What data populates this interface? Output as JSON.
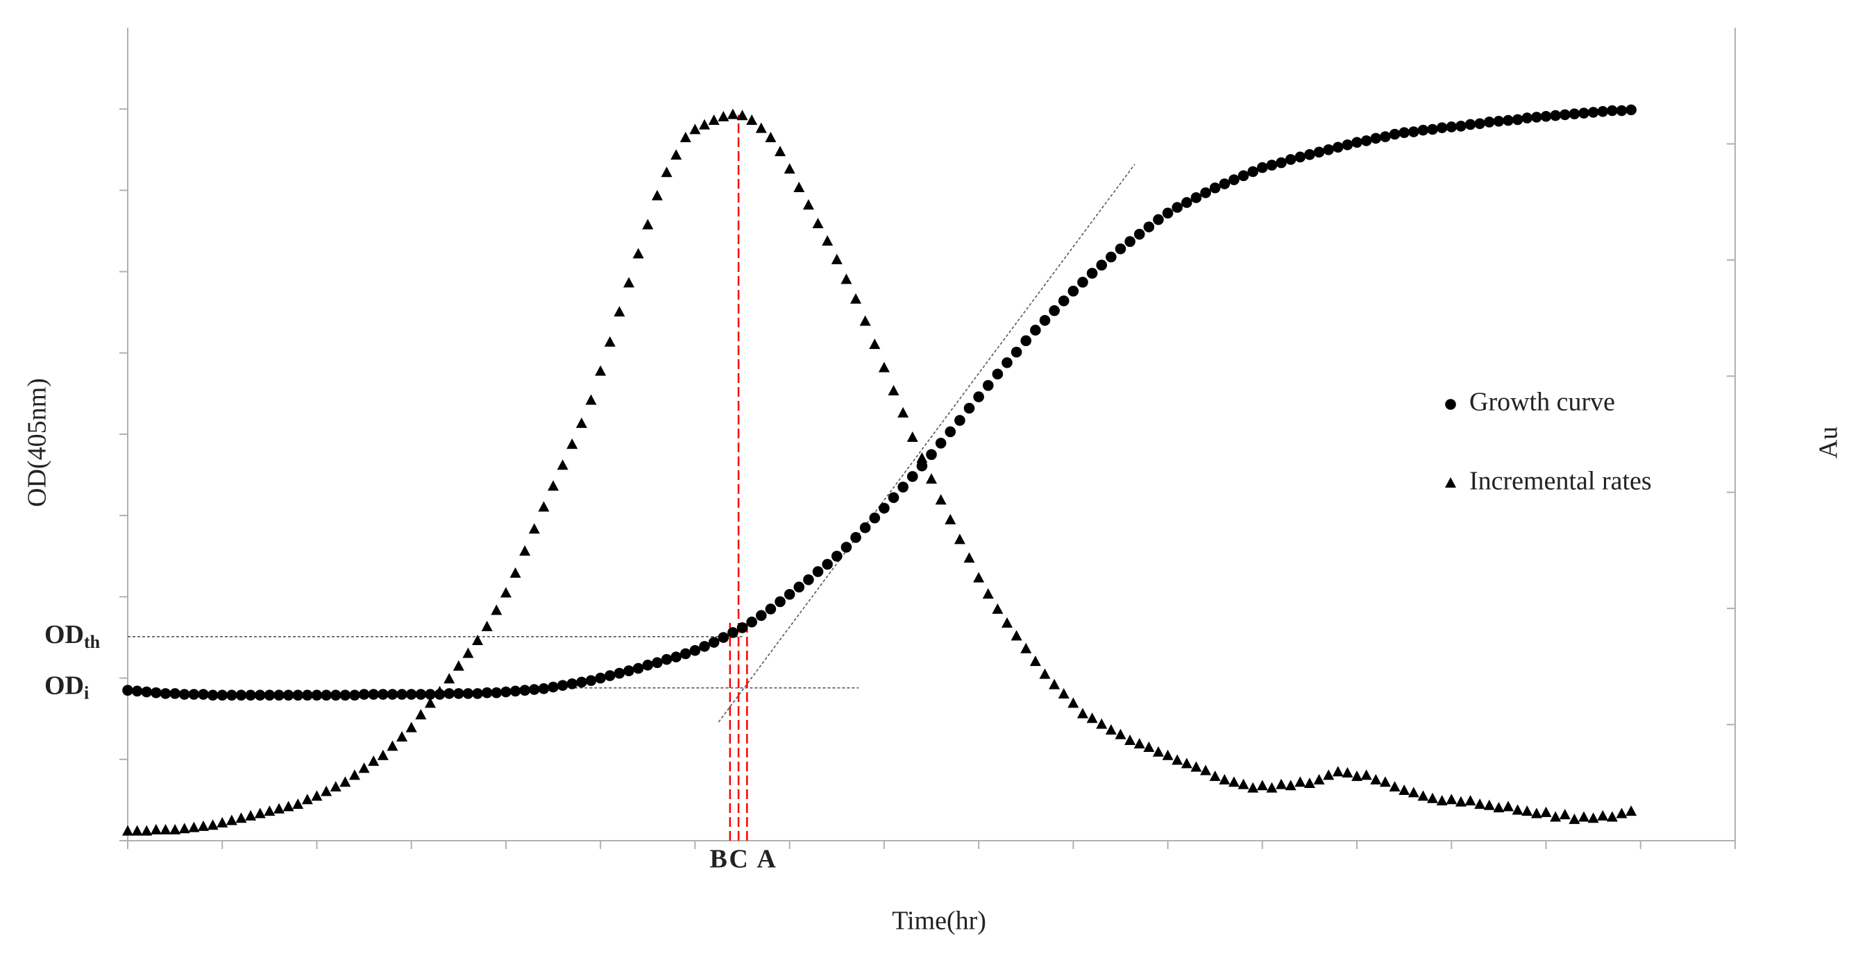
{
  "chart_data": {
    "type": "scatter",
    "xlabel": "Time(hr)",
    "ylabel": "OD(405nm)",
    "y2label": "Au",
    "xlim": [
      0,
      17
    ],
    "xticks": [
      0,
      1,
      2,
      3,
      4,
      5,
      6,
      7,
      8,
      9,
      10,
      11,
      12,
      13,
      14,
      15,
      16,
      17
    ],
    "ylim": [
      0,
      10
    ],
    "yticks": [
      0,
      1,
      2,
      3,
      4,
      5,
      6,
      7,
      8,
      9
    ],
    "y2lim": [
      0,
      7
    ],
    "y2ticks": [
      0,
      1,
      2,
      3,
      4,
      5,
      6
    ],
    "legend": "right",
    "x": [
      0.0,
      0.1,
      0.2,
      0.3,
      0.4,
      0.5,
      0.6,
      0.7,
      0.8,
      0.9,
      1.0,
      1.1,
      1.2,
      1.3,
      1.4,
      1.5,
      1.6,
      1.7,
      1.8,
      1.9,
      2.0,
      2.1,
      2.2,
      2.3,
      2.4,
      2.5,
      2.6,
      2.7,
      2.8,
      2.9,
      3.0,
      3.1,
      3.2,
      3.3,
      3.4,
      3.5,
      3.6,
      3.7,
      3.8,
      3.9,
      4.0,
      4.1,
      4.2,
      4.3,
      4.4,
      4.5,
      4.6,
      4.7,
      4.8,
      4.9,
      5.0,
      5.1,
      5.2,
      5.3,
      5.4,
      5.5,
      5.6,
      5.7,
      5.8,
      5.9,
      6.0,
      6.1,
      6.2,
      6.3,
      6.4,
      6.5,
      6.6,
      6.7,
      6.8,
      6.9,
      7.0,
      7.1,
      7.2,
      7.3,
      7.4,
      7.5,
      7.6,
      7.7,
      7.8,
      7.9,
      8.0,
      8.1,
      8.2,
      8.3,
      8.4,
      8.5,
      8.6,
      8.7,
      8.8,
      8.9,
      9.0,
      9.1,
      9.2,
      9.3,
      9.4,
      9.5,
      9.6,
      9.7,
      9.8,
      9.9,
      10.0,
      10.1,
      10.2,
      10.3,
      10.4,
      10.5,
      10.6,
      10.7,
      10.8,
      10.9,
      11.0,
      11.1,
      11.2,
      11.3,
      11.4,
      11.5,
      11.6,
      11.7,
      11.8,
      11.9,
      12.0,
      12.1,
      12.2,
      12.3,
      12.4,
      12.5,
      12.6,
      12.7,
      12.8,
      12.9,
      13.0,
      13.1,
      13.2,
      13.3,
      13.4,
      13.5,
      13.6,
      13.7,
      13.8,
      13.9,
      14.0,
      14.1,
      14.2,
      14.3,
      14.4,
      14.5,
      14.6,
      14.7,
      14.8,
      14.9,
      15.0,
      15.1,
      15.2,
      15.3,
      15.4,
      15.5,
      15.6,
      15.7,
      15.8,
      15.9
    ],
    "series": [
      {
        "name": "Growth curve",
        "marker": "circle",
        "color": "#000000",
        "axis": "y",
        "values": [
          1.85,
          1.84,
          1.83,
          1.82,
          1.81,
          1.81,
          1.8,
          1.8,
          1.8,
          1.79,
          1.79,
          1.79,
          1.79,
          1.79,
          1.79,
          1.79,
          1.79,
          1.79,
          1.79,
          1.79,
          1.79,
          1.79,
          1.79,
          1.79,
          1.79,
          1.8,
          1.8,
          1.8,
          1.8,
          1.8,
          1.8,
          1.8,
          1.8,
          1.8,
          1.81,
          1.81,
          1.81,
          1.81,
          1.82,
          1.82,
          1.83,
          1.84,
          1.85,
          1.86,
          1.87,
          1.89,
          1.91,
          1.93,
          1.95,
          1.97,
          2.0,
          2.03,
          2.06,
          2.09,
          2.12,
          2.16,
          2.19,
          2.23,
          2.26,
          2.3,
          2.34,
          2.39,
          2.44,
          2.5,
          2.56,
          2.62,
          2.69,
          2.77,
          2.85,
          2.94,
          3.03,
          3.12,
          3.21,
          3.31,
          3.4,
          3.5,
          3.61,
          3.73,
          3.85,
          3.97,
          4.09,
          4.22,
          4.35,
          4.48,
          4.61,
          4.75,
          4.89,
          5.03,
          5.17,
          5.32,
          5.46,
          5.6,
          5.74,
          5.88,
          6.01,
          6.15,
          6.28,
          6.4,
          6.52,
          6.64,
          6.76,
          6.87,
          6.98,
          7.08,
          7.18,
          7.28,
          7.37,
          7.46,
          7.55,
          7.64,
          7.72,
          7.79,
          7.85,
          7.91,
          7.97,
          8.03,
          8.08,
          8.13,
          8.18,
          8.23,
          8.28,
          8.31,
          8.34,
          8.38,
          8.41,
          8.44,
          8.47,
          8.5,
          8.53,
          8.56,
          8.59,
          8.61,
          8.64,
          8.66,
          8.69,
          8.71,
          8.72,
          8.74,
          8.75,
          8.77,
          8.78,
          8.79,
          8.81,
          8.82,
          8.84,
          8.85,
          8.86,
          8.87,
          8.89,
          8.9,
          8.91,
          8.92,
          8.93,
          8.94,
          8.95,
          8.96,
          8.97,
          8.98,
          8.98,
          8.99
        ]
      },
      {
        "name": "Incremental rates",
        "marker": "triangle",
        "color": "#000000",
        "axis": "y2",
        "values": [
          0.08,
          0.08,
          0.08,
          0.09,
          0.09,
          0.09,
          0.1,
          0.11,
          0.12,
          0.13,
          0.15,
          0.17,
          0.19,
          0.21,
          0.23,
          0.25,
          0.27,
          0.29,
          0.31,
          0.35,
          0.38,
          0.42,
          0.46,
          0.5,
          0.56,
          0.62,
          0.68,
          0.73,
          0.81,
          0.89,
          0.97,
          1.08,
          1.18,
          1.28,
          1.39,
          1.5,
          1.61,
          1.72,
          1.84,
          1.98,
          2.13,
          2.3,
          2.49,
          2.68,
          2.87,
          3.05,
          3.23,
          3.41,
          3.59,
          3.79,
          4.04,
          4.29,
          4.55,
          4.8,
          5.05,
          5.3,
          5.55,
          5.75,
          5.9,
          6.05,
          6.12,
          6.16,
          6.2,
          6.23,
          6.25,
          6.24,
          6.2,
          6.13,
          6.05,
          5.93,
          5.78,
          5.62,
          5.47,
          5.31,
          5.16,
          5.0,
          4.83,
          4.66,
          4.47,
          4.27,
          4.07,
          3.87,
          3.68,
          3.47,
          3.29,
          3.11,
          2.93,
          2.76,
          2.59,
          2.43,
          2.26,
          2.12,
          1.99,
          1.87,
          1.76,
          1.65,
          1.54,
          1.43,
          1.34,
          1.26,
          1.18,
          1.09,
          1.05,
          1.0,
          0.95,
          0.91,
          0.86,
          0.83,
          0.8,
          0.76,
          0.73,
          0.69,
          0.66,
          0.63,
          0.6,
          0.55,
          0.52,
          0.5,
          0.48,
          0.45,
          0.47,
          0.45,
          0.48,
          0.47,
          0.5,
          0.49,
          0.52,
          0.56,
          0.59,
          0.58,
          0.55,
          0.56,
          0.52,
          0.5,
          0.46,
          0.43,
          0.41,
          0.38,
          0.36,
          0.34,
          0.35,
          0.33,
          0.34,
          0.31,
          0.3,
          0.28,
          0.29,
          0.26,
          0.25,
          0.23,
          0.24,
          0.2,
          0.22,
          0.18,
          0.2,
          0.19,
          0.21,
          0.2,
          0.23,
          0.25
        ]
      }
    ],
    "guides": [
      {
        "x": [
          6.25,
          10.65
        ],
        "y": [
          1.46,
          8.32
        ]
      },
      {
        "x": [
          0,
          6.5
        ],
        "y": [
          2.51,
          2.51
        ]
      },
      {
        "x": [
          4.73,
          7.73
        ],
        "y": [
          1.88,
          1.88
        ]
      }
    ],
    "annotations": [
      {
        "text": "OD",
        "sub": "th",
        "y": 2.51
      },
      {
        "text": "OD",
        "sub": "i",
        "y": 1.88
      }
    ],
    "markers": [
      {
        "label": "B",
        "x": 6.37,
        "color": "#ff0000"
      },
      {
        "label": "C",
        "x": 6.46,
        "color": "#ff0000"
      },
      {
        "label": "A",
        "x": 6.55,
        "color": "#ff0000"
      }
    ]
  }
}
